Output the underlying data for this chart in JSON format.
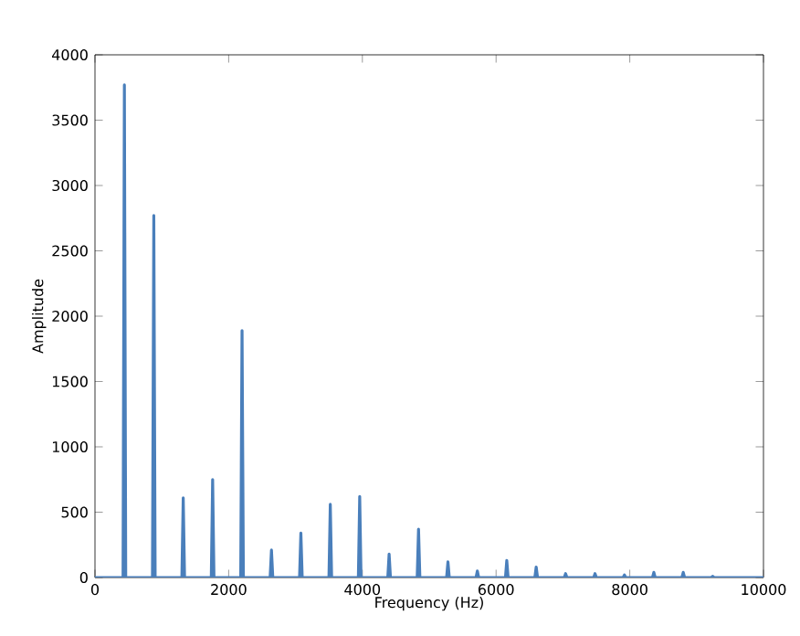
{
  "chart_data": {
    "type": "line",
    "xlabel": "Frequency (Hz)",
    "ylabel": "Amplitude",
    "x": [
      0,
      420,
      440,
      460,
      860,
      880,
      900,
      1300,
      1320,
      1340,
      1740,
      1760,
      1780,
      2180,
      2200,
      2220,
      2620,
      2640,
      2660,
      3060,
      3080,
      3100,
      3500,
      3520,
      3540,
      3940,
      3960,
      3980,
      4380,
      4400,
      4420,
      4820,
      4840,
      4860,
      5260,
      5280,
      5300,
      5700,
      5720,
      5740,
      6140,
      6160,
      6180,
      6580,
      6600,
      6620,
      7020,
      7040,
      7060,
      7460,
      7480,
      7500,
      7900,
      7920,
      7940,
      8340,
      8360,
      8380,
      8780,
      8800,
      8820,
      9220,
      9240,
      9260,
      10000
    ],
    "series": [
      {
        "color": "#4a7fbb",
        "values": [
          0,
          0,
          3770,
          0,
          0,
          2770,
          0,
          0,
          610,
          0,
          0,
          750,
          0,
          0,
          1890,
          0,
          0,
          210,
          0,
          0,
          340,
          0,
          0,
          560,
          0,
          0,
          620,
          0,
          0,
          180,
          0,
          0,
          370,
          0,
          0,
          120,
          0,
          0,
          50,
          0,
          0,
          130,
          0,
          0,
          80,
          0,
          0,
          30,
          0,
          0,
          30,
          0,
          0,
          20,
          0,
          0,
          40,
          0,
          0,
          40,
          0,
          0,
          10,
          0,
          0
        ]
      }
    ],
    "xlim": [
      0,
      10000
    ],
    "ylim": [
      0,
      4000
    ],
    "xticks": [
      0,
      2000,
      4000,
      6000,
      8000,
      10000
    ],
    "yticks": [
      0,
      500,
      1000,
      1500,
      2000,
      2500,
      3000,
      3500,
      4000
    ],
    "grid": false,
    "marker": "none",
    "line_style": "solid"
  }
}
